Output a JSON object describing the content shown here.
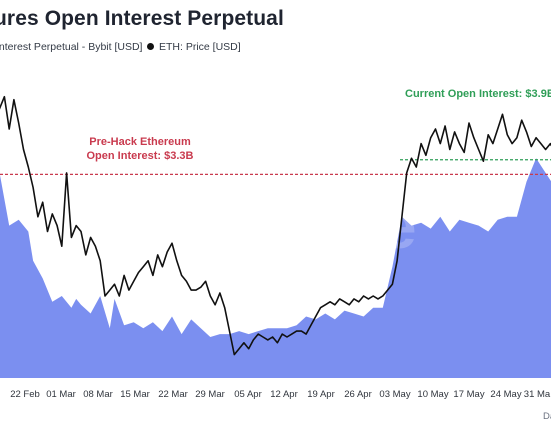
{
  "chart_data": {
    "type": "area",
    "title": "ures Open Interest Perpetual",
    "legend": [
      {
        "label": "Interest Perpetual - Bybit [USD]",
        "color": "#7b8ff0"
      },
      {
        "label": "ETH: Price [USD]",
        "color": "#111111"
      }
    ],
    "watermark": "glassnode",
    "footer_text": "Da",
    "x_ticks": [
      "22 Feb",
      "01 Mar",
      "08 Mar",
      "15 Mar",
      "22 Mar",
      "29 Mar",
      "05 Apr",
      "12 Apr",
      "19 Apr",
      "26 Apr",
      "03 May",
      "10 May",
      "17 May",
      "24 May",
      "31 Ma"
    ],
    "annotations": {
      "current": "Current Open Interest: $3.9B",
      "prehack_line1": "Pre-Hack Ethereum",
      "prehack_line2": "Open Interest: $3.3B"
    },
    "series": [
      {
        "name": "Interest Perpetual - Bybit [USD]",
        "color": "#7b8ff0",
        "x_days": [
          0,
          2,
          4,
          6,
          8,
          9,
          11,
          13,
          15,
          17,
          18,
          19,
          21,
          23,
          25,
          26,
          28,
          30,
          32,
          34,
          36,
          38,
          40,
          42,
          44,
          46,
          48,
          50,
          52,
          54,
          56,
          58,
          60,
          62,
          64,
          66,
          68,
          70,
          72,
          74,
          76,
          78,
          80,
          82,
          84,
          86,
          88,
          90,
          92,
          94,
          96,
          98,
          100,
          102,
          104,
          106,
          108,
          110,
          112,
          114,
          116,
          118
        ],
        "values": [
          0.58,
          0.7,
          0.52,
          0.54,
          0.5,
          0.4,
          0.34,
          0.26,
          0.28,
          0.24,
          0.27,
          0.25,
          0.22,
          0.28,
          0.17,
          0.27,
          0.18,
          0.19,
          0.17,
          0.19,
          0.16,
          0.21,
          0.15,
          0.2,
          0.17,
          0.14,
          0.15,
          0.15,
          0.16,
          0.15,
          0.16,
          0.17,
          0.17,
          0.17,
          0.18,
          0.21,
          0.2,
          0.22,
          0.2,
          0.23,
          0.22,
          0.21,
          0.24,
          0.24,
          0.38,
          0.55,
          0.52,
          0.53,
          0.51,
          0.55,
          0.5,
          0.54,
          0.53,
          0.52,
          0.5,
          0.54,
          0.55,
          0.55,
          0.67,
          0.75,
          0.7,
          0.65
        ]
      },
      {
        "name": "ETH: Price [USD]",
        "color": "#111111",
        "x_days": [
          0,
          1,
          2,
          3,
          4,
          5,
          6,
          7,
          8,
          9,
          10,
          11,
          12,
          13,
          14,
          15,
          16,
          17,
          18,
          19,
          20,
          21,
          22,
          23,
          24,
          25,
          26,
          27,
          28,
          29,
          30,
          31,
          32,
          33,
          34,
          35,
          36,
          37,
          38,
          39,
          40,
          41,
          42,
          43,
          44,
          45,
          46,
          47,
          48,
          49,
          50,
          51,
          52,
          53,
          54,
          55,
          56,
          57,
          58,
          59,
          60,
          61,
          62,
          63,
          64,
          65,
          66,
          67,
          68,
          69,
          70,
          71,
          72,
          73,
          74,
          75,
          76,
          77,
          78,
          79,
          80,
          81,
          82,
          83,
          84,
          85,
          86,
          87,
          88,
          89,
          90,
          91,
          92,
          93,
          94,
          95,
          96,
          97,
          98,
          99,
          100,
          101,
          102,
          103,
          104,
          105,
          106,
          107,
          108,
          109,
          110,
          111,
          112,
          113,
          114,
          115,
          116,
          117,
          118
        ],
        "values": [
          0.95,
          0.88,
          0.92,
          0.96,
          0.85,
          0.95,
          0.87,
          0.78,
          0.72,
          0.65,
          0.55,
          0.6,
          0.5,
          0.56,
          0.52,
          0.45,
          0.7,
          0.48,
          0.52,
          0.5,
          0.42,
          0.48,
          0.45,
          0.4,
          0.28,
          0.3,
          0.32,
          0.28,
          0.35,
          0.3,
          0.33,
          0.36,
          0.38,
          0.4,
          0.35,
          0.42,
          0.38,
          0.43,
          0.46,
          0.4,
          0.35,
          0.33,
          0.3,
          0.3,
          0.31,
          0.33,
          0.28,
          0.25,
          0.29,
          0.24,
          0.16,
          0.08,
          0.1,
          0.12,
          0.1,
          0.13,
          0.15,
          0.14,
          0.13,
          0.14,
          0.12,
          0.15,
          0.14,
          0.15,
          0.16,
          0.16,
          0.15,
          0.18,
          0.21,
          0.24,
          0.25,
          0.26,
          0.25,
          0.27,
          0.26,
          0.25,
          0.27,
          0.26,
          0.28,
          0.27,
          0.28,
          0.27,
          0.28,
          0.3,
          0.32,
          0.4,
          0.55,
          0.7,
          0.75,
          0.72,
          0.8,
          0.76,
          0.82,
          0.85,
          0.8,
          0.86,
          0.78,
          0.84,
          0.8,
          0.77,
          0.87,
          0.82,
          0.78,
          0.74,
          0.83,
          0.8,
          0.85,
          0.9,
          0.83,
          0.8,
          0.82,
          0.88,
          0.84,
          0.79,
          0.82,
          0.8,
          0.78,
          0.8,
          0.77
        ]
      }
    ],
    "ylim": [
      0,
      1
    ],
    "reference_lines": [
      {
        "label": "Pre-Hack Ethereum Open Interest: $3.3B",
        "color": "#c93a4e",
        "value": 0.695
      },
      {
        "label": "Current Open Interest: $3.9B",
        "color": "#2f9e57",
        "value": 0.82
      }
    ],
    "grid": false
  }
}
